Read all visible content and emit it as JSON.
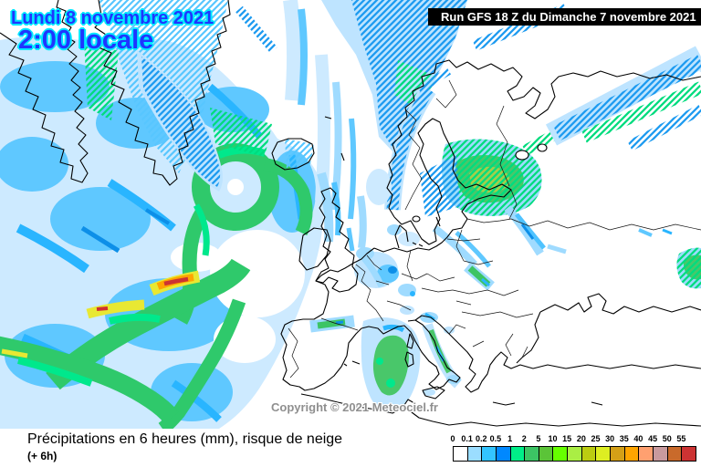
{
  "overlay": {
    "date_line": "Lundi 8 novembre 2021",
    "time_line": "2:00 locale",
    "run_info": "Run GFS 18 Z du Dimanche 7 novembre 2021",
    "copyright": "Copyright © 2021 Meteociel.fr"
  },
  "footer": {
    "title": "Précipitations en 6 heures (mm), risque de neige",
    "subtitle": "(+ 6h)"
  },
  "legend": {
    "unit_labels": [
      "0",
      "0.1",
      "0.2",
      "0.5",
      "1",
      "2",
      "5",
      "10",
      "15",
      "20",
      "25",
      "30",
      "35",
      "40",
      "45",
      "50",
      "55"
    ],
    "colors": [
      "#FFFFFF",
      "#9BDDFF",
      "#33C4FF",
      "#0088FF",
      "#00EE88",
      "#3CC464",
      "#5BC438",
      "#66FF00",
      "#AAEE44",
      "#BBCC11",
      "#DDEE22",
      "#D4A017",
      "#FFA500",
      "#FFA070",
      "#C89A9E",
      "#C96A2B",
      "#CC3333"
    ]
  },
  "colors": {
    "date_text": "#1f36ff",
    "date_glow": "#00e8ff",
    "run_bg": "#000000",
    "run_text": "#ffffff",
    "copyright_text": "#8f8f8f",
    "sea_land": "#ffffff",
    "coastline": "#000000"
  }
}
